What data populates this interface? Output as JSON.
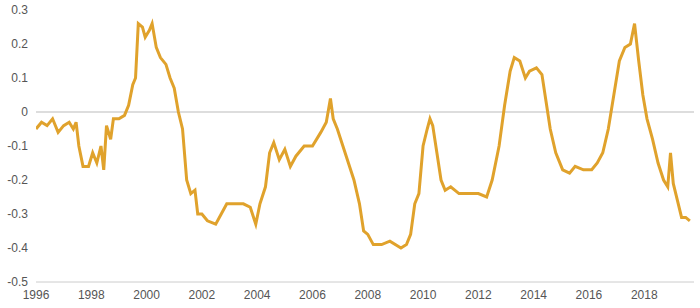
{
  "chart_data": {
    "type": "line",
    "color": "#e0a22c",
    "grid": false,
    "x": [
      1996.0,
      1996.2,
      1996.4,
      1996.6,
      1996.8,
      1997.0,
      1997.2,
      1997.35,
      1997.45,
      1997.55,
      1997.7,
      1997.9,
      1998.05,
      1998.2,
      1998.35,
      1998.45,
      1998.55,
      1998.7,
      1998.8,
      1999.0,
      1999.2,
      1999.35,
      1999.5,
      1999.6,
      1999.7,
      1999.85,
      1999.95,
      2000.1,
      2000.2,
      2000.35,
      2000.5,
      2000.7,
      2000.85,
      2001.0,
      2001.15,
      2001.3,
      2001.45,
      2001.6,
      2001.75,
      2001.85,
      2002.0,
      2002.2,
      2002.5,
      2002.7,
      2002.9,
      2003.2,
      2003.5,
      2003.75,
      2003.95,
      2004.1,
      2004.3,
      2004.45,
      2004.6,
      2004.8,
      2005.0,
      2005.2,
      2005.4,
      2005.7,
      2006.0,
      2006.3,
      2006.5,
      2006.65,
      2006.75,
      2006.9,
      2007.1,
      2007.3,
      2007.5,
      2007.7,
      2007.85,
      2008.0,
      2008.2,
      2008.5,
      2008.8,
      2009.2,
      2009.4,
      2009.55,
      2009.7,
      2009.85,
      2010.0,
      2010.15,
      2010.25,
      2010.35,
      2010.5,
      2010.65,
      2010.8,
      2011.0,
      2011.3,
      2011.7,
      2012.0,
      2012.3,
      2012.5,
      2012.75,
      2012.95,
      2013.15,
      2013.3,
      2013.5,
      2013.7,
      2013.85,
      2014.1,
      2014.3,
      2014.45,
      2014.6,
      2014.8,
      2015.05,
      2015.3,
      2015.5,
      2015.8,
      2016.1,
      2016.3,
      2016.5,
      2016.7,
      2016.9,
      2017.1,
      2017.3,
      2017.5,
      2017.65,
      2017.8,
      2017.95,
      2018.1,
      2018.3,
      2018.5,
      2018.7,
      2018.85,
      2018.95,
      2019.05,
      2019.2,
      2019.35,
      2019.5,
      2019.65
    ],
    "values": [
      -0.05,
      -0.03,
      -0.04,
      -0.02,
      -0.06,
      -0.04,
      -0.03,
      -0.05,
      -0.03,
      -0.1,
      -0.16,
      -0.16,
      -0.12,
      -0.15,
      -0.1,
      -0.17,
      -0.04,
      -0.08,
      -0.02,
      -0.02,
      -0.01,
      0.02,
      0.08,
      0.1,
      0.26,
      0.25,
      0.22,
      0.24,
      0.26,
      0.19,
      0.16,
      0.14,
      0.1,
      0.07,
      0.0,
      -0.05,
      -0.2,
      -0.24,
      -0.23,
      -0.3,
      -0.3,
      -0.32,
      -0.33,
      -0.3,
      -0.27,
      -0.27,
      -0.27,
      -0.28,
      -0.33,
      -0.27,
      -0.22,
      -0.12,
      -0.09,
      -0.14,
      -0.11,
      -0.16,
      -0.13,
      -0.1,
      -0.1,
      -0.06,
      -0.03,
      0.04,
      -0.02,
      -0.05,
      -0.1,
      -0.15,
      -0.2,
      -0.27,
      -0.35,
      -0.36,
      -0.39,
      -0.39,
      -0.38,
      -0.4,
      -0.39,
      -0.36,
      -0.27,
      -0.24,
      -0.1,
      -0.05,
      -0.02,
      -0.04,
      -0.12,
      -0.2,
      -0.23,
      -0.22,
      -0.24,
      -0.24,
      -0.24,
      -0.25,
      -0.2,
      -0.1,
      0.02,
      0.12,
      0.16,
      0.15,
      0.1,
      0.12,
      0.13,
      0.11,
      0.03,
      -0.05,
      -0.12,
      -0.17,
      -0.18,
      -0.16,
      -0.17,
      -0.17,
      -0.15,
      -0.12,
      -0.05,
      0.05,
      0.15,
      0.19,
      0.2,
      0.26,
      0.15,
      0.05,
      -0.02,
      -0.08,
      -0.15,
      -0.2,
      -0.22,
      -0.12,
      -0.21,
      -0.26,
      -0.31,
      -0.31,
      -0.32
    ],
    "xlim": [
      1996,
      2019.8
    ],
    "xticks": [
      1996,
      1998,
      2000,
      2002,
      2004,
      2006,
      2008,
      2010,
      2012,
      2014,
      2016,
      2018
    ],
    "ylim": [
      -0.5,
      0.3
    ],
    "yticks": [
      -0.5,
      -0.4,
      -0.3,
      -0.2,
      -0.1,
      0,
      0.1,
      0.2,
      0.3
    ]
  }
}
